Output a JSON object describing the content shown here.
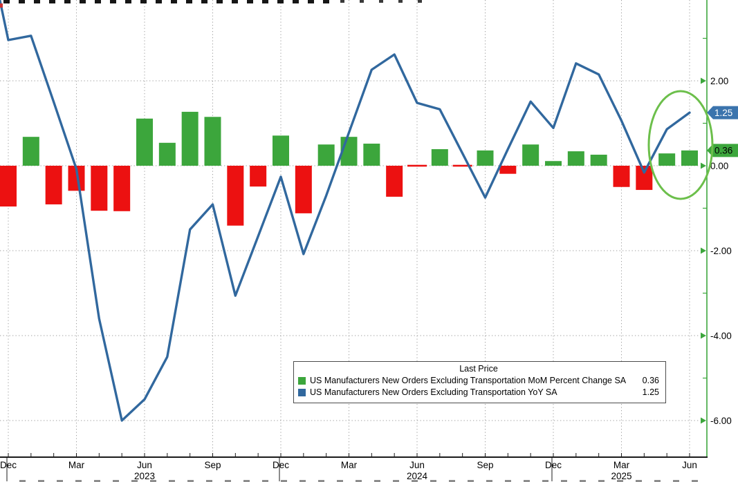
{
  "legend": {
    "title": "Last Price",
    "entries": [
      {
        "label": "US Manufacturers New Orders Excluding Transportation MoM Percent Change SA",
        "value": "0.36",
        "swatch_color": "#3CA63C"
      },
      {
        "label": "US Manufacturers New Orders Excluding Transportation YoY SA",
        "value": "1.25",
        "swatch_color": "#31689E"
      }
    ]
  },
  "chart_data": {
    "type": "combo",
    "title": "Last Price",
    "categories": [
      "Dec 2022",
      "Jan 2023",
      "Feb 2023",
      "Mar 2023",
      "Apr 2023",
      "May 2023",
      "Jun 2023",
      "Jul 2023",
      "Aug 2023",
      "Sep 2023",
      "Oct 2023",
      "Nov 2023",
      "Dec 2023",
      "Jan 2024",
      "Feb 2024",
      "Mar 2024",
      "Apr 2024",
      "May 2024",
      "Jun 2024",
      "Jul 2024",
      "Aug 2024",
      "Sep 2024",
      "Oct 2024",
      "Nov 2024",
      "Dec 2024",
      "Jan 2025",
      "Feb 2025",
      "Mar 2025",
      "Apr 2025",
      "May 2025",
      "Jun 2025"
    ],
    "series": [
      {
        "name": "US Manufacturers New Orders Excluding Transportation MoM Percent Change SA",
        "type": "bar",
        "unit": "percent",
        "color_positive": "#3CA63C",
        "color_negative": "#EC1111",
        "last_price": 0.36,
        "values": [
          -0.96,
          0.68,
          -0.91,
          -0.59,
          -1.06,
          -1.07,
          1.11,
          0.54,
          1.27,
          1.15,
          -1.41,
          -0.49,
          0.71,
          -1.12,
          0.5,
          0.68,
          0.52,
          -0.73,
          -0.02,
          0.39,
          -0.02,
          0.36,
          -0.19,
          0.5,
          0.11,
          0.34,
          0.26,
          -0.5,
          -0.57,
          0.29,
          0.36
        ]
      },
      {
        "name": "US Manufacturers New Orders Excluding Transportation YoY SA",
        "type": "line",
        "unit": "percent",
        "color": "#31689E",
        "last_price": 1.25,
        "values": [
          2.96,
          3.06,
          1.5,
          -0.08,
          -3.6,
          -6.0,
          -5.5,
          -4.5,
          -1.5,
          -0.91,
          -3.06,
          -1.66,
          -0.26,
          -2.08,
          -0.7,
          0.78,
          2.26,
          2.62,
          1.48,
          1.33,
          0.29,
          -0.75,
          0.39,
          1.51,
          0.89,
          2.41,
          2.15,
          1.06,
          -0.16,
          0.86,
          1.25
        ]
      }
    ],
    "y_axis": {
      "side": "right",
      "spine_color": "#3CA63C",
      "ticks": [
        {
          "value": 2,
          "label": "2.00"
        },
        {
          "value": 0,
          "label": "0.00"
        },
        {
          "value": -2,
          "label": "-2.00"
        },
        {
          "value": -4,
          "label": "-4.00"
        },
        {
          "value": -6,
          "label": "-6.00"
        }
      ],
      "minor_tick_values": [
        3,
        1,
        -1,
        -3,
        -5
      ],
      "range_shown": [
        -6.6,
        3.9
      ]
    },
    "x_axis": {
      "quarter_ticks": [
        {
          "month_index": 0,
          "label": "Dec"
        },
        {
          "month_index": 3,
          "label": "Mar"
        },
        {
          "month_index": 6,
          "label": "Jun",
          "year": "2023"
        },
        {
          "month_index": 9,
          "label": "Sep"
        },
        {
          "month_index": 12,
          "label": "Dec"
        },
        {
          "month_index": 15,
          "label": "Mar"
        },
        {
          "month_index": 18,
          "label": "Jun",
          "year": "2024"
        },
        {
          "month_index": 21,
          "label": "Sep"
        },
        {
          "month_index": 24,
          "label": "Dec"
        },
        {
          "month_index": 27,
          "label": "Mar",
          "year": "2025"
        },
        {
          "month_index": 30,
          "label": "Jun"
        }
      ],
      "year_separator_month_indexes": [
        0,
        12,
        24
      ]
    },
    "last_price_badges": [
      {
        "label": "1.25",
        "value": 1.25,
        "bg": "#3B74AD",
        "fg": "#FFFFFF"
      },
      {
        "label": "0.36",
        "value": 0.36,
        "bg": "#3CA63C",
        "fg": "#000000"
      }
    ],
    "annotation": {
      "shape": "ellipse",
      "color": "#6CBF4B"
    },
    "grid": "dotted",
    "legend_position": "bottom-center"
  }
}
